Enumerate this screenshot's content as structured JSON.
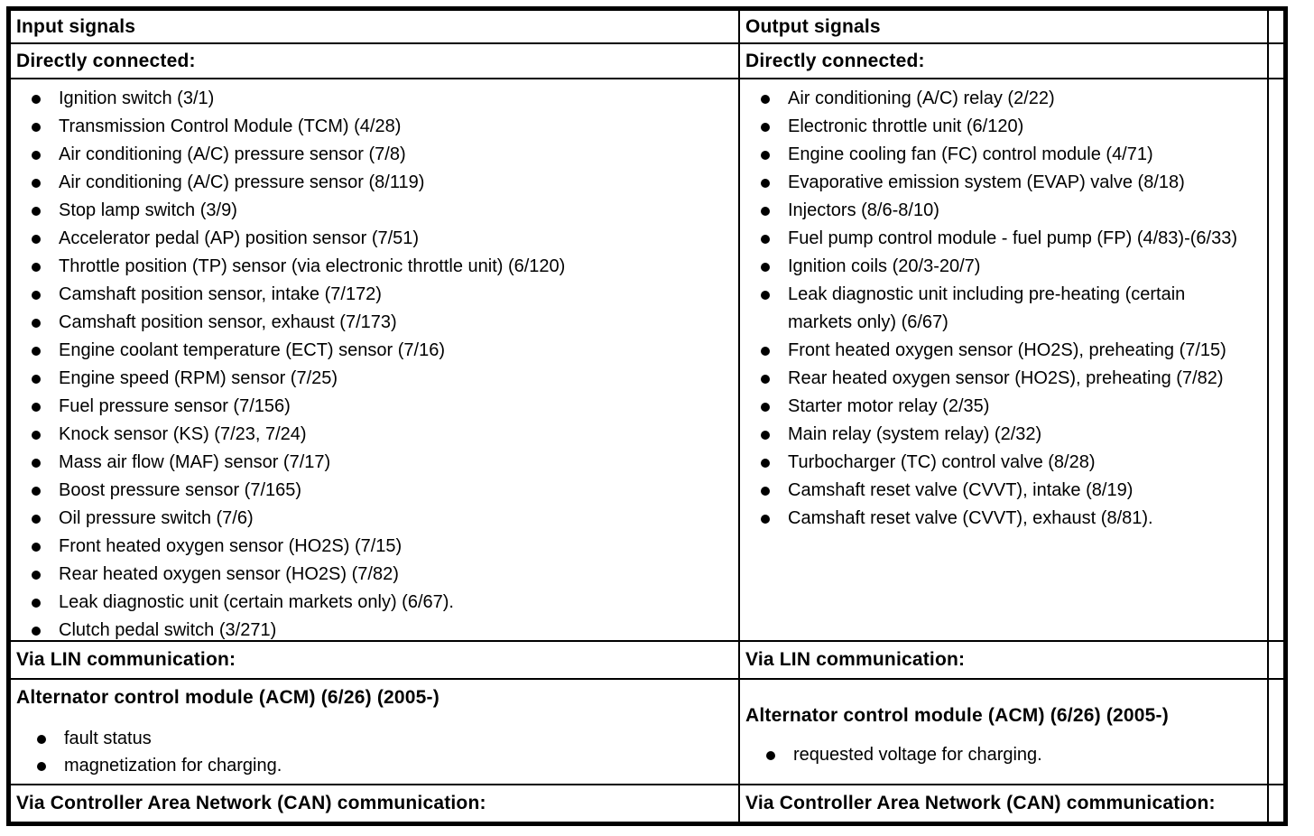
{
  "colors": {
    "border": "#000000",
    "text": "#000000",
    "background": "#ffffff"
  },
  "input_column": {
    "header": "Input signals",
    "directly_connected_label": "Directly connected:",
    "directly_connected_items": [
      "Ignition switch (3/1)",
      "Transmission Control Module (TCM) (4/28)",
      "Air conditioning (A/C) pressure sensor (7/8)",
      "Air conditioning (A/C) pressure sensor (8/119)",
      "Stop lamp switch (3/9)",
      "Accelerator pedal (AP) position sensor (7/51)",
      "Throttle position (TP) sensor (via electronic throttle unit) (6/120)",
      "Camshaft position sensor, intake (7/172)",
      "Camshaft position sensor, exhaust (7/173)",
      "Engine coolant temperature (ECT) sensor (7/16)",
      "Engine speed (RPM) sensor (7/25)",
      "Fuel pressure sensor (7/156)",
      "Knock sensor (KS) (7/23, 7/24)",
      "Mass air flow (MAF) sensor (7/17)",
      "Boost pressure sensor (7/165)",
      "Oil pressure switch (7/6)",
      "Front heated oxygen sensor (HO2S) (7/15)",
      "Rear heated oxygen sensor (HO2S) (7/82)",
      "Leak diagnostic unit (certain markets only) (6/67).",
      "Clutch pedal switch (3/271)"
    ],
    "via_lin_label": "Via LIN communication:",
    "acm_heading": "Alternator control module (ACM) (6/26) (2005-)",
    "acm_items": [
      "fault status",
      "magnetization for charging."
    ],
    "via_can_label": "Via Controller Area Network (CAN) communication:"
  },
  "output_column": {
    "header": "Output signals",
    "directly_connected_label": "Directly connected:",
    "directly_connected_items": [
      "Air conditioning (A/C) relay (2/22)",
      "Electronic throttle unit (6/120)",
      "Engine cooling fan (FC) control module (4/71)",
      "Evaporative emission system (EVAP) valve (8/18)",
      "Injectors (8/6-8/10)",
      "Fuel pump control module - fuel pump (FP) (4/83)-(6/33)",
      "Ignition coils (20/3-20/7)",
      "Leak diagnostic unit including pre-heating (certain markets only) (6/67)",
      "Front heated oxygen sensor (HO2S), preheating (7/15)",
      "Rear heated oxygen sensor (HO2S), preheating (7/82)",
      "Starter motor relay (2/35)",
      "Main relay (system relay) (2/32)",
      "Turbocharger (TC) control valve (8/28)",
      "Camshaft reset valve (CVVT), intake (8/19)",
      "Camshaft reset valve (CVVT), exhaust (8/81)."
    ],
    "via_lin_label": "Via LIN communication:",
    "acm_heading": "Alternator control module (ACM) (6/26) (2005-)",
    "acm_items": [
      "requested voltage for charging."
    ],
    "via_can_label": "Via Controller Area Network (CAN) communication:"
  }
}
